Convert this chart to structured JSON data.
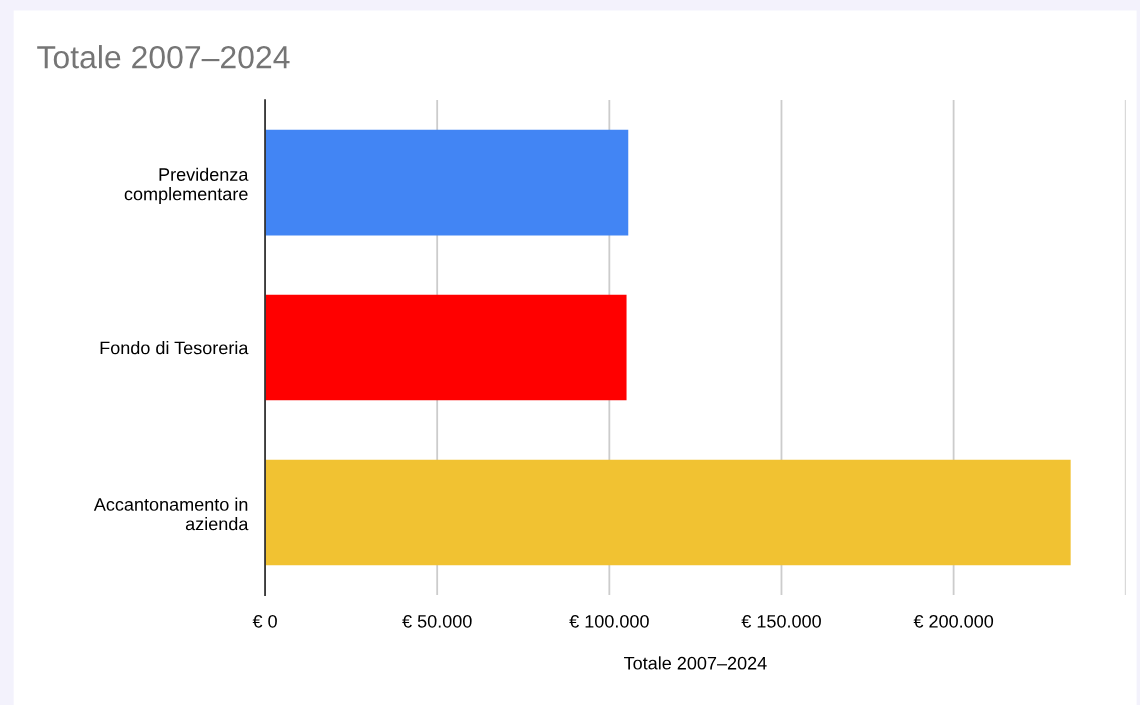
{
  "chart_data": {
    "type": "bar",
    "orientation": "horizontal",
    "title": "Totale 2007–2024",
    "xlabel": "Totale 2007–2024",
    "categories": [
      "Previdenza\ncomplementare",
      "Fondo di Tesoreria",
      "Accantonamento in\nazienda"
    ],
    "values": [
      105500,
      105000,
      234000
    ],
    "colors": [
      "#4285f4",
      "#ff0000",
      "#f1c232"
    ],
    "xlim": [
      0,
      250000
    ],
    "xticks": [
      {
        "value": 0,
        "label": "€ 0"
      },
      {
        "value": 50000,
        "label": "€ 50.000"
      },
      {
        "value": 100000,
        "label": "€ 100.000"
      },
      {
        "value": 150000,
        "label": "€ 150.000"
      },
      {
        "value": 200000,
        "label": "€ 200.000"
      },
      {
        "value": 250000,
        "label": null
      }
    ],
    "grid": "x",
    "legend": false
  }
}
